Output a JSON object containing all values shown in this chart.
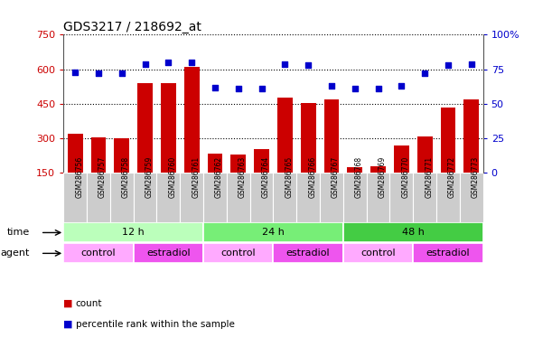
{
  "title": "GDS3217 / 218692_at",
  "samples": [
    "GSM286756",
    "GSM286757",
    "GSM286758",
    "GSM286759",
    "GSM286760",
    "GSM286761",
    "GSM286762",
    "GSM286763",
    "GSM286764",
    "GSM286765",
    "GSM286766",
    "GSM286767",
    "GSM286768",
    "GSM286769",
    "GSM286770",
    "GSM286771",
    "GSM286772",
    "GSM286773"
  ],
  "counts": [
    320,
    303,
    300,
    540,
    540,
    610,
    235,
    228,
    253,
    475,
    453,
    470,
    175,
    178,
    270,
    308,
    435,
    468
  ],
  "percentiles": [
    73,
    72,
    72,
    79,
    80,
    80,
    62,
    61,
    61,
    79,
    78,
    63,
    61,
    61,
    63,
    72,
    78,
    79
  ],
  "ylim_left": [
    150,
    750
  ],
  "ylim_right": [
    0,
    100
  ],
  "yticks_left": [
    150,
    300,
    450,
    600,
    750
  ],
  "yticks_right": [
    0,
    25,
    50,
    75,
    100
  ],
  "bar_color": "#cc0000",
  "dot_color": "#0000cc",
  "time_groups": [
    {
      "label": "12 h",
      "start": 0,
      "end": 5,
      "color": "#bbffbb"
    },
    {
      "label": "24 h",
      "start": 6,
      "end": 11,
      "color": "#77ee77"
    },
    {
      "label": "48 h",
      "start": 12,
      "end": 17,
      "color": "#44cc44"
    }
  ],
  "agent_groups": [
    {
      "label": "control",
      "start": 0,
      "end": 2,
      "color": "#ffaaff"
    },
    {
      "label": "estradiol",
      "start": 3,
      "end": 5,
      "color": "#ee55ee"
    },
    {
      "label": "control",
      "start": 6,
      "end": 8,
      "color": "#ffaaff"
    },
    {
      "label": "estradiol",
      "start": 9,
      "end": 11,
      "color": "#ee55ee"
    },
    {
      "label": "control",
      "start": 12,
      "end": 14,
      "color": "#ffaaff"
    },
    {
      "label": "estradiol",
      "start": 15,
      "end": 17,
      "color": "#ee55ee"
    }
  ],
  "legend_count_label": "count",
  "legend_pct_label": "percentile rank within the sample",
  "time_label": "time",
  "agent_label": "agent",
  "grid_color": "#000000",
  "bg_color": "#ffffff",
  "plot_bg": "#ffffff",
  "tick_label_color_left": "#cc0000",
  "tick_label_color_right": "#0000cc",
  "xlabel_bg": "#cccccc"
}
